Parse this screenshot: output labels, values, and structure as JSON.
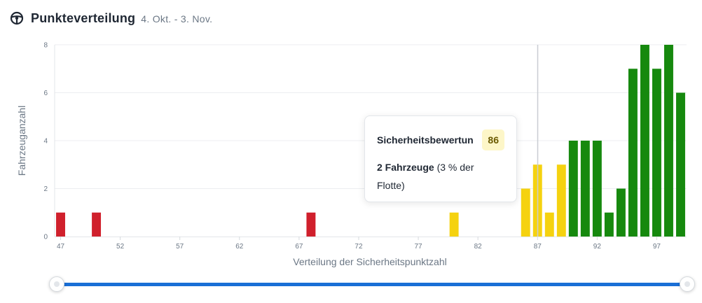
{
  "header": {
    "title": "Punkteverteilung",
    "range": "4. Okt. - 3. Nov.",
    "icon": "steering-wheel-icon"
  },
  "tooltip": {
    "label": "Sicherheitsbewertun",
    "score": "86",
    "count": "2 Fahrzeuge",
    "detail_pre": " (3 % der",
    "detail_post": "Flotte)"
  },
  "colors": {
    "red": "#d0202c",
    "yellow": "#f5d20f",
    "green": "#16890e",
    "slider": "#1a6fd6"
  },
  "chart_data": {
    "type": "bar",
    "xlabel": "Verteilung der Sicherheitspunktzahl",
    "ylabel": "Fahrzeuganzahl",
    "xlim": [
      46.5,
      99.5
    ],
    "ylim": [
      0,
      8
    ],
    "x_ticks": [
      47,
      52,
      57,
      62,
      67,
      72,
      77,
      82,
      87,
      92,
      97
    ],
    "y_ticks": [
      0,
      2,
      4,
      6,
      8
    ],
    "grid": true,
    "highlight_x": 87,
    "bars": [
      {
        "x": 47,
        "value": 1,
        "color": "red"
      },
      {
        "x": 50,
        "value": 1,
        "color": "red"
      },
      {
        "x": 68,
        "value": 1,
        "color": "red"
      },
      {
        "x": 80,
        "value": 1,
        "color": "yellow"
      },
      {
        "x": 86,
        "value": 2,
        "color": "yellow"
      },
      {
        "x": 87,
        "value": 3,
        "color": "yellow"
      },
      {
        "x": 88,
        "value": 1,
        "color": "yellow"
      },
      {
        "x": 89,
        "value": 3,
        "color": "yellow"
      },
      {
        "x": 90,
        "value": 4,
        "color": "green"
      },
      {
        "x": 91,
        "value": 4,
        "color": "green"
      },
      {
        "x": 92,
        "value": 4,
        "color": "green"
      },
      {
        "x": 93,
        "value": 1,
        "color": "green"
      },
      {
        "x": 94,
        "value": 2,
        "color": "green"
      },
      {
        "x": 95,
        "value": 7,
        "color": "green"
      },
      {
        "x": 96,
        "value": 8,
        "color": "green"
      },
      {
        "x": 97,
        "value": 7,
        "color": "green"
      },
      {
        "x": 98,
        "value": 8,
        "color": "green"
      },
      {
        "x": 99,
        "value": 6,
        "color": "green"
      }
    ]
  }
}
